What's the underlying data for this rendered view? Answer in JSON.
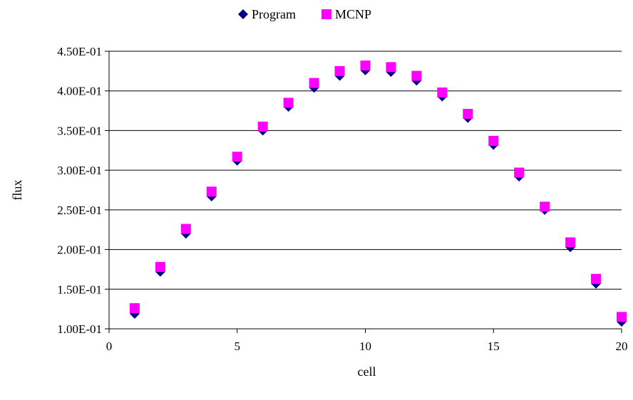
{
  "chart_data": {
    "type": "scatter",
    "title": "",
    "xlabel": "cell",
    "ylabel": "flux",
    "xlim": [
      0,
      20
    ],
    "ylim": [
      0.1,
      0.45
    ],
    "xticks": [
      0,
      5,
      10,
      15,
      20
    ],
    "x_tick_labels": [
      "0",
      "5",
      "10",
      "15",
      "20"
    ],
    "yticks": [
      0.1,
      0.15,
      0.2,
      0.25,
      0.3,
      0.35,
      0.4,
      0.45
    ],
    "y_tick_labels": [
      "1.00E-01",
      "1.50E-01",
      "2.00E-01",
      "2.50E-01",
      "3.00E-01",
      "3.50E-01",
      "4.00E-01",
      "4.50E-01"
    ],
    "grid": "horizontal",
    "legend_position": "top",
    "series": [
      {
        "name": "Program",
        "marker": "diamond",
        "color": "#000080",
        "x": [
          1,
          2,
          3,
          4,
          5,
          6,
          7,
          8,
          9,
          10,
          11,
          12,
          13,
          14,
          15,
          16,
          17,
          18,
          19,
          20
        ],
        "values": [
          0.119,
          0.172,
          0.22,
          0.267,
          0.312,
          0.35,
          0.38,
          0.404,
          0.419,
          0.426,
          0.424,
          0.413,
          0.393,
          0.366,
          0.332,
          0.292,
          0.25,
          0.203,
          0.157,
          0.109
        ]
      },
      {
        "name": "MCNP",
        "marker": "square",
        "color": "#ff00ff",
        "x": [
          1,
          2,
          3,
          4,
          5,
          6,
          7,
          8,
          9,
          10,
          11,
          12,
          13,
          14,
          15,
          16,
          17,
          18,
          19,
          20
        ],
        "values": [
          0.126,
          0.178,
          0.226,
          0.273,
          0.317,
          0.355,
          0.385,
          0.41,
          0.425,
          0.432,
          0.43,
          0.419,
          0.398,
          0.371,
          0.337,
          0.297,
          0.254,
          0.209,
          0.163,
          0.115
        ]
      }
    ]
  }
}
